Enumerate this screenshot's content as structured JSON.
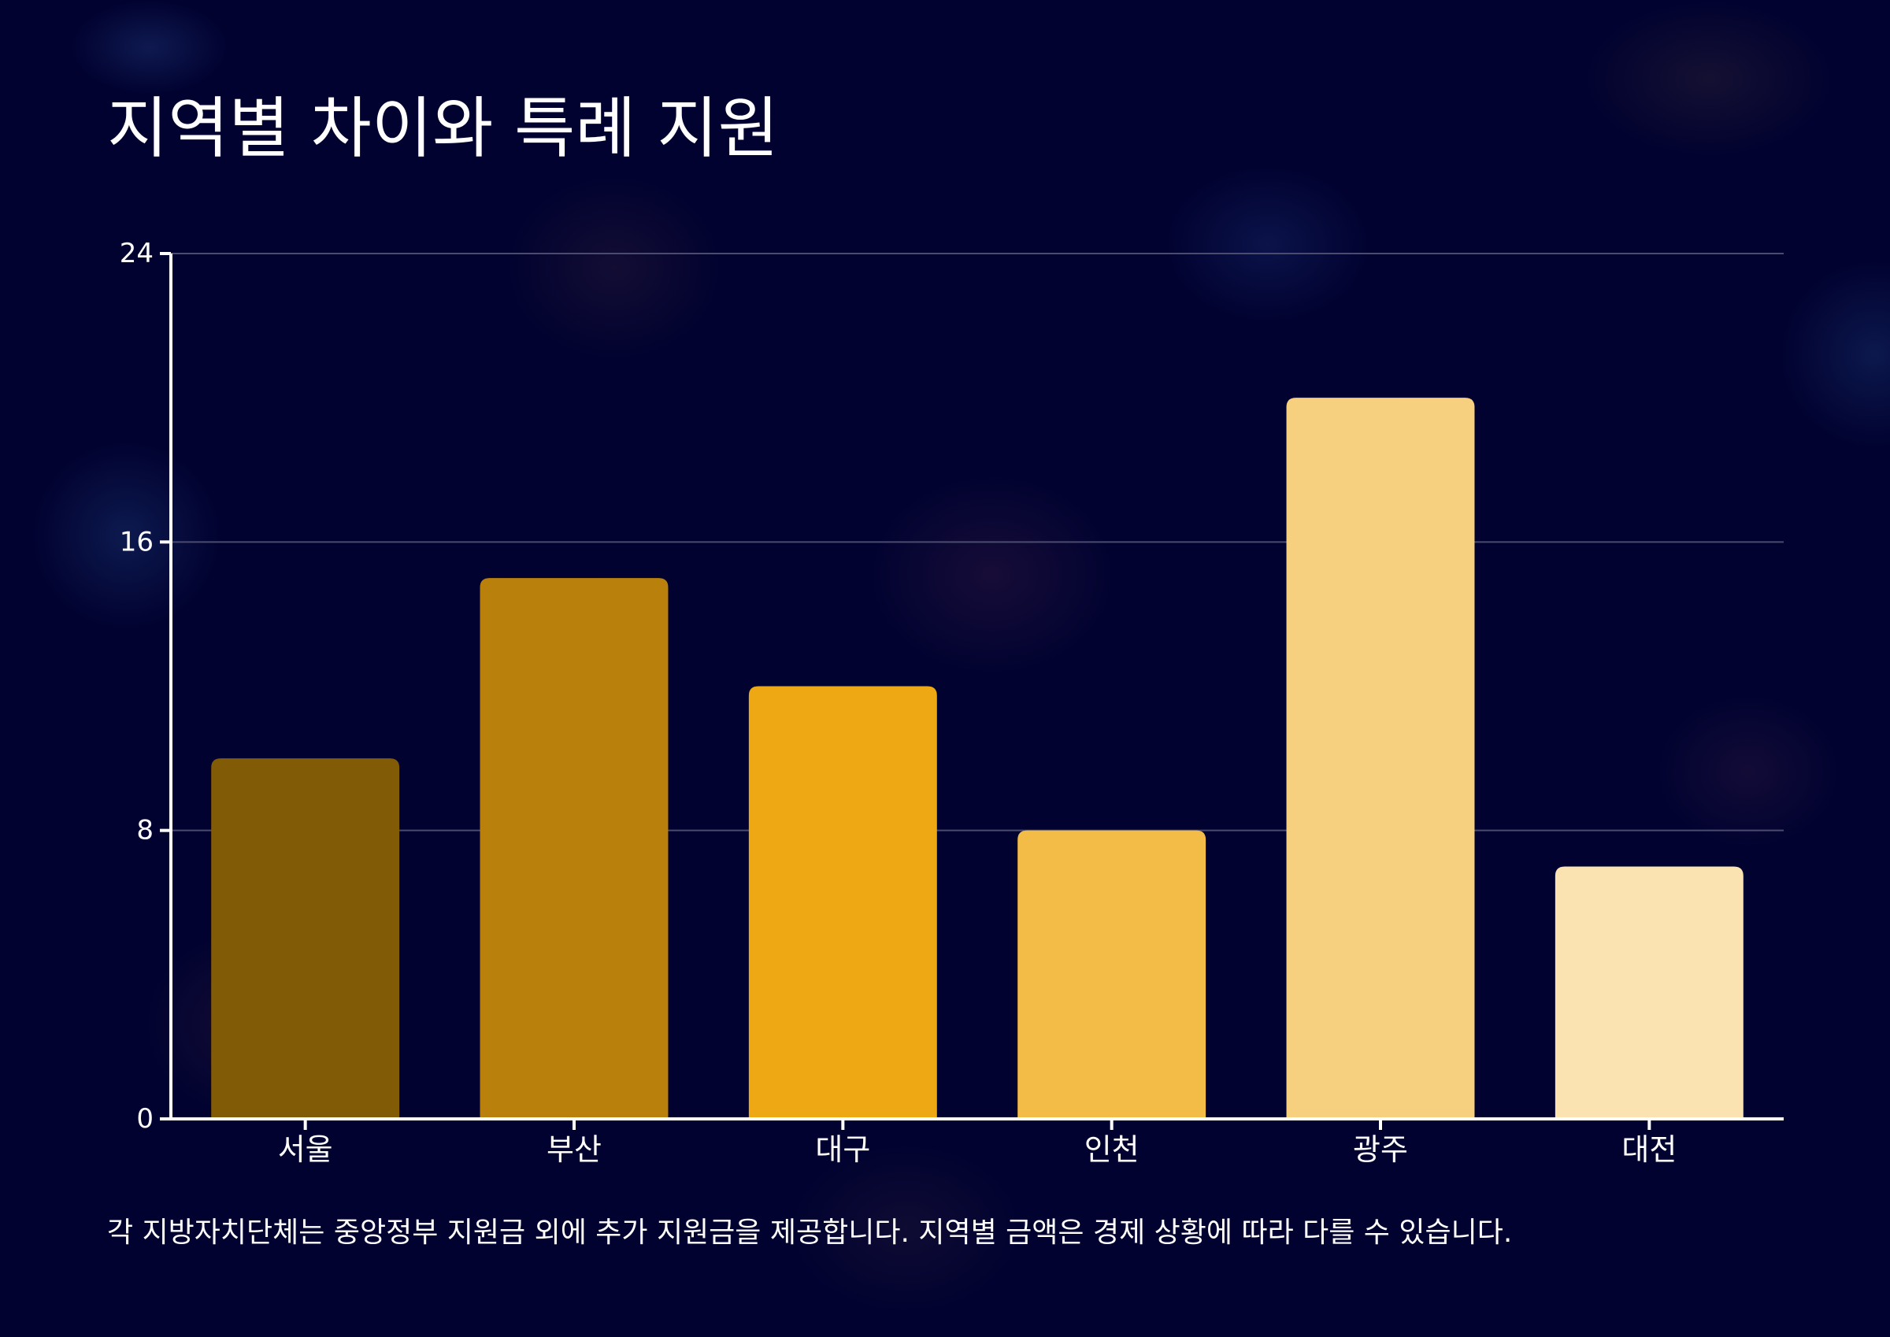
{
  "chart_data": {
    "type": "bar",
    "title": "지역별 차이와 특례 지원",
    "caption": "각 지방자치단체는 중앙정부 지원금 외에 추가 지원금을 제공합니다. 지역별 금액은 경제 상황에 따라 다를 수 있습니다.",
    "categories": [
      "서울",
      "부산",
      "대구",
      "인천",
      "광주",
      "대전"
    ],
    "values": [
      10,
      15,
      12,
      8,
      20,
      7
    ],
    "bar_colors": [
      "#825b07",
      "#b9810c",
      "#eea814",
      "#f3bc46",
      "#f6d07e",
      "#fae3b0"
    ],
    "ylim": [
      0,
      24
    ],
    "yticks": [
      0,
      8,
      16,
      24
    ],
    "ytick_labels": [
      "0",
      "8",
      "16",
      "24"
    ],
    "xlabel": "",
    "ylabel": "",
    "grid": true,
    "legend": "none",
    "colors": {
      "background": "#010230",
      "axis": "#ffffff",
      "grid": "#4a4b6e",
      "text": "#ffffff"
    }
  }
}
